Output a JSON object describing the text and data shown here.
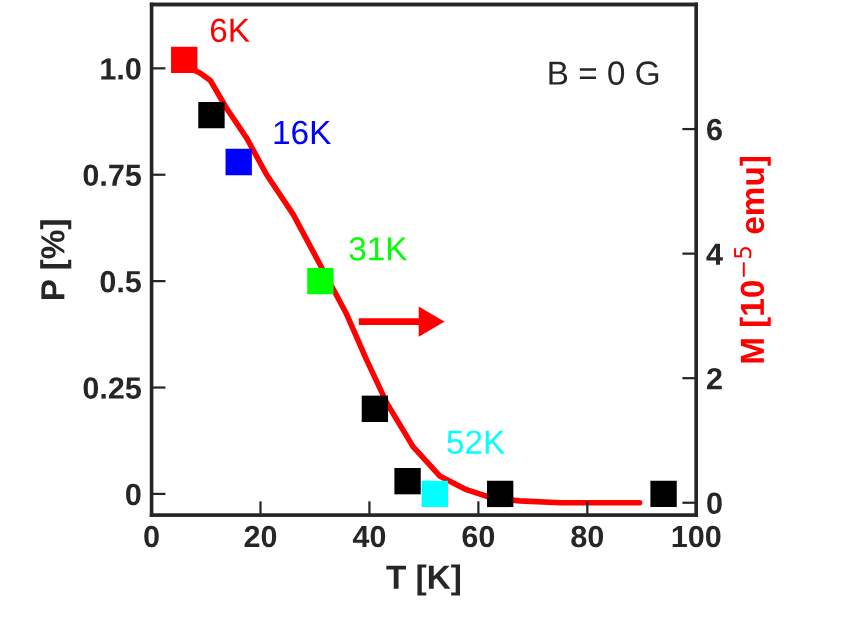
{
  "chart_data": {
    "type": "scatter",
    "xlabel": "T [K]",
    "ylabel": "P [%]",
    "y2label": "M [10$^{−5}$ emu]",
    "xlim": [
      0,
      100
    ],
    "xticks": [
      0,
      20,
      40,
      60,
      80,
      100
    ],
    "ylim": [
      -0.05,
      1.15
    ],
    "yticks": [
      0,
      0.25,
      0.5,
      0.75,
      {
        "value": 1,
        "label": "1.0"
      }
    ],
    "y2lim": [
      -0.2,
      8
    ],
    "y2ticks": [
      0,
      2,
      4,
      6
    ],
    "grid": false,
    "series": [
      {
        "marker": "square",
        "x": [
          6,
          11,
          16,
          31,
          41,
          47,
          52,
          64,
          94
        ],
        "values": [
          1.02,
          0.89,
          0.78,
          0.5,
          0.2,
          0.03,
          0.0,
          0.0,
          0.0
        ],
        "colors": [
          "#ff0000",
          "#000000",
          "#0000ff",
          "#00ff00",
          "#000000",
          "#000000",
          "#00ffff",
          "#000000",
          "#000000"
        ]
      },
      {
        "type": "line",
        "axis": "y2",
        "color": "#ff0000",
        "x": [
          6.5,
          8.9,
          10.8,
          13.8,
          17.5,
          21.1,
          26,
          30.9,
          35.8,
          39.5,
          43.2,
          48,
          52.9,
          57.8,
          62.7,
          67.6,
          75,
          89.6
        ],
        "values": [
          7.0,
          6.9,
          6.78,
          6.33,
          5.85,
          5.27,
          4.63,
          3.83,
          3.03,
          2.29,
          1.6,
          0.9,
          0.43,
          0.21,
          0.07,
          0.03,
          0,
          0
        ]
      }
    ],
    "annotations": [
      "B = 0 G",
      {
        "text": "6K",
        "x": 6,
        "y": 1.02
      },
      {
        "text": "16K",
        "x": 16,
        "y": 0.78
      },
      {
        "text": "31K",
        "x": 31,
        "y": 0.5
      },
      {
        "text": "52K",
        "x": 52,
        "y": 0.0
      }
    ]
  }
}
